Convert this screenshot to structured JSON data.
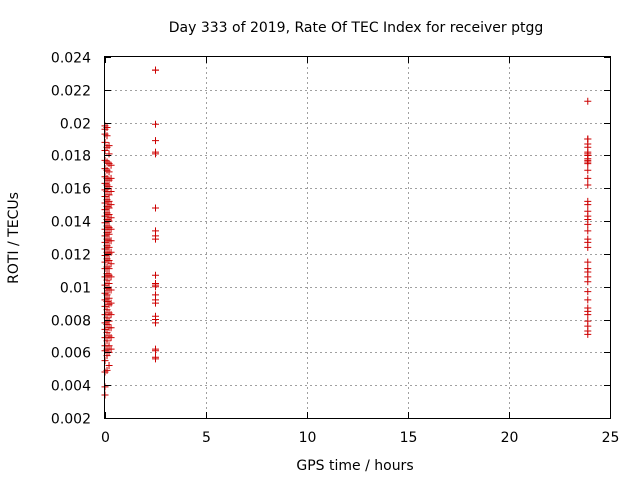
{
  "chart_data": {
    "type": "scatter",
    "title": "Day 333 of 2019, Rate Of TEC Index for receiver ptgg",
    "xlabel": "GPS time / hours",
    "ylabel": "ROTI / TECUs",
    "xlim": [
      0,
      25
    ],
    "ylim": [
      0.002,
      0.024
    ],
    "x_ticks": [
      0,
      5,
      10,
      15,
      20,
      25
    ],
    "x_tick_labels": [
      "0",
      "5",
      "10",
      "15",
      "20",
      "25"
    ],
    "y_ticks": [
      0.002,
      0.004,
      0.006,
      0.008,
      0.01,
      0.012,
      0.014,
      0.016,
      0.018,
      0.02,
      0.022,
      0.024
    ],
    "y_tick_labels": [
      "0.002",
      "0.004",
      "0.006",
      "0.008",
      "0.01",
      "0.012",
      "0.014",
      "0.016",
      "0.018",
      "0.02",
      "0.022",
      "0.024"
    ],
    "grid": true,
    "marker": "+",
    "color": "#cc0000",
    "series": [
      {
        "name": "ROTI",
        "x": [
          0.0,
          0.0,
          0.0,
          0.0,
          0.0,
          0.0,
          0.0,
          0.0,
          0.0,
          0.0,
          0.0,
          0.0,
          0.0,
          0.0,
          0.0,
          0.0,
          0.0,
          0.0,
          0.0,
          0.0,
          0.0,
          0.0,
          0.0,
          0.0,
          0.0,
          0.0,
          0.0,
          0.0,
          0.0,
          0.0,
          0.0,
          0.0,
          0.0,
          0.0,
          0.0,
          0.0,
          0.0,
          0.1,
          0.1,
          0.1,
          0.1,
          0.1,
          0.1,
          0.1,
          0.1,
          0.1,
          0.1,
          0.1,
          0.1,
          0.1,
          0.1,
          0.1,
          0.1,
          0.1,
          0.1,
          0.1,
          0.1,
          0.1,
          0.1,
          0.1,
          0.1,
          0.1,
          0.1,
          0.1,
          0.1,
          0.1,
          0.1,
          0.1,
          0.1,
          0.2,
          0.2,
          0.2,
          0.2,
          0.2,
          0.2,
          0.2,
          0.2,
          0.2,
          0.2,
          0.2,
          0.2,
          0.2,
          0.2,
          0.2,
          0.2,
          0.2,
          0.2,
          0.2,
          0.2,
          0.2,
          0.2,
          0.2,
          0.2,
          0.2,
          0.2,
          0.2,
          0.2,
          0.2,
          0.2,
          0.3,
          0.3,
          0.3,
          0.3,
          0.3,
          0.3,
          0.3,
          0.3,
          0.3,
          0.3,
          0.3,
          0.3,
          0.3,
          0.3,
          0.3,
          0.3,
          2.5,
          2.5,
          2.5,
          2.5,
          2.5,
          2.5,
          2.5,
          2.5,
          2.5,
          2.5,
          2.5,
          2.5,
          2.5,
          2.5,
          2.5,
          2.5,
          2.5,
          2.5,
          2.5,
          2.5,
          2.5,
          2.5,
          2.5,
          2.5,
          23.9,
          23.9,
          23.9,
          23.9,
          23.9,
          23.9,
          23.9,
          23.9,
          23.9,
          23.9,
          23.9,
          23.9,
          23.9,
          23.9,
          23.9,
          23.9,
          23.9,
          23.9,
          23.9,
          23.9,
          23.9,
          23.9,
          23.9,
          23.9,
          23.9,
          23.9,
          23.9,
          23.9,
          23.9,
          23.9,
          23.9,
          23.9,
          23.9,
          23.9,
          23.9,
          23.9,
          23.9,
          23.9,
          23.9
        ],
        "y": [
          0.0034,
          0.0039,
          0.0048,
          0.0055,
          0.0061,
          0.0064,
          0.0069,
          0.0074,
          0.0078,
          0.0083,
          0.0088,
          0.0092,
          0.0096,
          0.0101,
          0.0106,
          0.0111,
          0.0115,
          0.0119,
          0.0123,
          0.0127,
          0.0131,
          0.0135,
          0.0139,
          0.0143,
          0.0147,
          0.0151,
          0.0155,
          0.0159,
          0.0163,
          0.0167,
          0.0172,
          0.0177,
          0.0183,
          0.0188,
          0.0193,
          0.0196,
          0.0198,
          0.0049,
          0.0058,
          0.0062,
          0.0067,
          0.0072,
          0.0077,
          0.0081,
          0.0086,
          0.0091,
          0.0095,
          0.0099,
          0.0104,
          0.0108,
          0.0112,
          0.0117,
          0.0121,
          0.0125,
          0.0129,
          0.0133,
          0.0137,
          0.0141,
          0.0145,
          0.0149,
          0.0153,
          0.0158,
          0.0162,
          0.0166,
          0.0171,
          0.0176,
          0.0185,
          0.0192,
          0.0197,
          0.0052,
          0.006,
          0.0064,
          0.007,
          0.0075,
          0.0079,
          0.0084,
          0.0089,
          0.0093,
          0.0098,
          0.0102,
          0.0107,
          0.0111,
          0.0116,
          0.012,
          0.0124,
          0.0128,
          0.0132,
          0.0136,
          0.014,
          0.0144,
          0.0148,
          0.0152,
          0.0156,
          0.0161,
          0.0165,
          0.017,
          0.0175,
          0.0181,
          0.0186,
          0.0062,
          0.0069,
          0.0075,
          0.0083,
          0.009,
          0.0098,
          0.0106,
          0.0114,
          0.0121,
          0.0128,
          0.0135,
          0.0142,
          0.015,
          0.0158,
          0.0166,
          0.0174,
          0.0056,
          0.0057,
          0.0061,
          0.0062,
          0.0078,
          0.008,
          0.0082,
          0.009,
          0.0092,
          0.0095,
          0.01,
          0.0101,
          0.0102,
          0.0107,
          0.0129,
          0.0131,
          0.0134,
          0.0148,
          0.0181,
          0.0182,
          0.0189,
          0.0199,
          0.0232,
          0.0232,
          0.0071,
          0.0073,
          0.0076,
          0.0079,
          0.0083,
          0.0085,
          0.0087,
          0.0092,
          0.0097,
          0.0103,
          0.0106,
          0.0109,
          0.0111,
          0.0115,
          0.0124,
          0.0127,
          0.0129,
          0.0134,
          0.0138,
          0.0141,
          0.0143,
          0.0146,
          0.015,
          0.0152,
          0.0162,
          0.0166,
          0.0171,
          0.0175,
          0.0176,
          0.0177,
          0.0178,
          0.018,
          0.0181,
          0.0182,
          0.0185,
          0.0187,
          0.019,
          0.019,
          0.0213
        ]
      }
    ]
  }
}
